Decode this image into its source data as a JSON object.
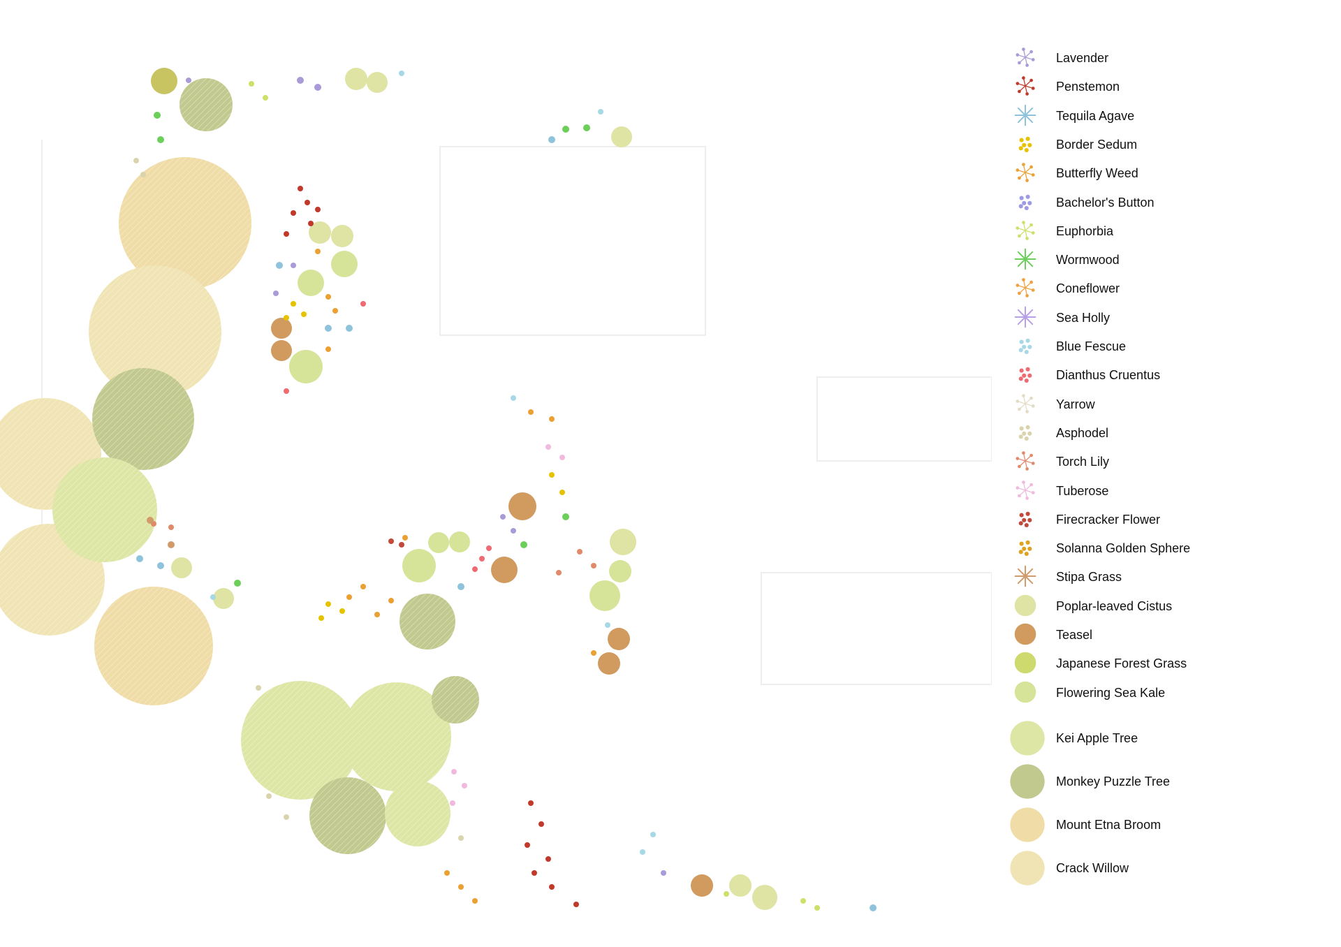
{
  "legend": {
    "items": [
      {
        "label": "Lavender",
        "icon": "lavender-icon",
        "color": "#a99bd8",
        "kind": "sprig"
      },
      {
        "label": "Penstemon",
        "icon": "penstemon-icon",
        "color": "#c0392b",
        "kind": "sprig"
      },
      {
        "label": "Tequila Agave",
        "icon": "tequila-agave-icon",
        "color": "#8fc3dc",
        "kind": "star"
      },
      {
        "label": "Border Sedum",
        "icon": "border-sedum-icon",
        "color": "#e6c200",
        "kind": "dots"
      },
      {
        "label": "Butterfly Weed",
        "icon": "butterfly-weed-icon",
        "color": "#eba033",
        "kind": "sprig"
      },
      {
        "label": "Bachelor's Button",
        "icon": "bachelors-button-icon",
        "color": "#9d9be6",
        "kind": "dots"
      },
      {
        "label": "Euphorbia",
        "icon": "euphorbia-icon",
        "color": "#cfe06a",
        "kind": "sprig"
      },
      {
        "label": "Wormwood",
        "icon": "wormwood-icon",
        "color": "#6ccf5a",
        "kind": "star"
      },
      {
        "label": "Coneflower",
        "icon": "coneflower-icon",
        "color": "#f0a03c",
        "kind": "sprig"
      },
      {
        "label": "Sea Holly",
        "icon": "sea-holly-icon",
        "color": "#b9a0e6",
        "kind": "star"
      },
      {
        "label": "Blue Fescue",
        "icon": "blue-fescue-icon",
        "color": "#a6d8e6",
        "kind": "dots"
      },
      {
        "label": "Dianthus Cruentus",
        "icon": "dianthus-cruentus-icon",
        "color": "#ef6b73",
        "kind": "dots"
      },
      {
        "label": "Yarrow",
        "icon": "yarrow-icon",
        "color": "#e3dcc4",
        "kind": "sprig"
      },
      {
        "label": "Asphodel",
        "icon": "asphodel-icon",
        "color": "#d9d4ad",
        "kind": "dots"
      },
      {
        "label": "Torch Lily",
        "icon": "torch-lily-icon",
        "color": "#e08a6a",
        "kind": "sprig"
      },
      {
        "label": "Tuberose",
        "icon": "tuberose-icon",
        "color": "#f1b9dd",
        "kind": "sprig"
      },
      {
        "label": "Firecracker Flower",
        "icon": "firecracker-flower-icon",
        "color": "#c24a3b",
        "kind": "dots"
      },
      {
        "label": "Solanna Golden Sphere",
        "icon": "solanna-golden-sphere-icon",
        "color": "#e0a320",
        "kind": "dots"
      },
      {
        "label": "Stipa Grass",
        "icon": "stipa-grass-icon",
        "color": "#d19a6a",
        "kind": "star"
      },
      {
        "label": "Poplar-leaved Cistus",
        "icon": "poplar-leaved-cistus-icon",
        "color": "#dfe3a4",
        "kind": "blob"
      },
      {
        "label": "Teasel",
        "icon": "teasel-icon",
        "color": "#d19a5e",
        "kind": "blob"
      },
      {
        "label": "Japanese Forest Grass",
        "icon": "japanese-forest-grass-icon",
        "color": "#cfda6e",
        "kind": "blob"
      },
      {
        "label": "Flowering Sea Kale",
        "icon": "flowering-sea-kale-icon",
        "color": "#d6e49a",
        "kind": "blob"
      },
      {
        "label": "Kei Apple Tree",
        "icon": "kei-apple-tree-icon",
        "color": "#dde6a4",
        "kind": "tree"
      },
      {
        "label": "Monkey Puzzle Tree",
        "icon": "monkey-puzzle-tree-icon",
        "color": "#c2c98e",
        "kind": "tree"
      },
      {
        "label": "Mount Etna Broom",
        "icon": "mount-etna-broom-icon",
        "color": "#efdca6",
        "kind": "tree"
      },
      {
        "label": "Crack Willow",
        "icon": "crack-willow-icon",
        "color": "#f0e4b4",
        "kind": "tree"
      }
    ]
  }
}
